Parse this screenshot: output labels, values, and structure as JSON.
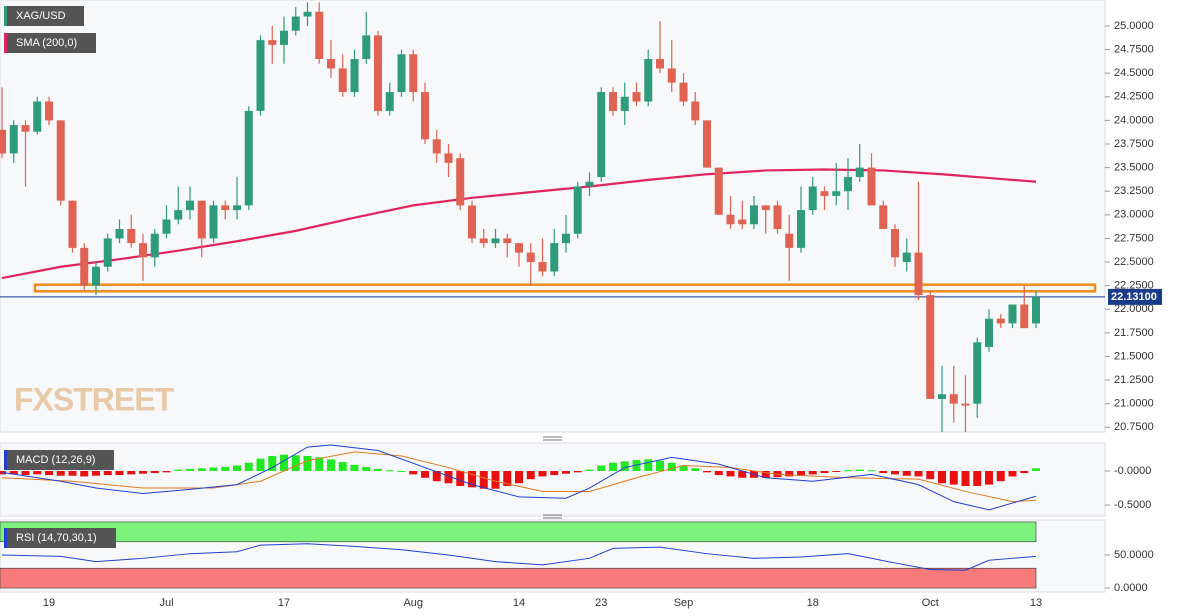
{
  "chart_data": {
    "type": "candlestick",
    "symbol": "XAG/USD",
    "watermark": "FXSTREET",
    "categories": [
      null,
      null,
      null,
      null,
      "19",
      null,
      null,
      null,
      null,
      null,
      null,
      null,
      null,
      null,
      "Jul",
      null,
      null,
      null,
      null,
      null,
      null,
      null,
      null,
      null,
      "17",
      null,
      null,
      null,
      null,
      null,
      null,
      null,
      null,
      null,
      null,
      "Aug",
      null,
      null,
      null,
      null,
      null,
      null,
      null,
      null,
      "14",
      null,
      null,
      null,
      null,
      null,
      null,
      "23",
      null,
      null,
      null,
      null,
      null,
      null,
      "Sep",
      null,
      null,
      null,
      null,
      null,
      null,
      null,
      null,
      null,
      null,
      "18",
      null,
      null,
      null,
      null,
      null,
      null,
      null,
      null,
      null,
      "Oct",
      null,
      null,
      null,
      null,
      null,
      null,
      null,
      null,
      "13"
    ],
    "open": [
      23.9,
      23.65,
      23.95,
      23.88,
      24.2,
      24.0,
      23.15,
      22.65,
      22.25,
      22.45,
      22.75,
      22.85,
      22.7,
      22.55,
      22.8,
      22.95,
      23.05,
      23.15,
      22.75,
      23.1,
      23.05,
      23.1,
      24.1,
      24.85,
      24.8,
      24.95,
      25.1,
      25.15,
      24.65,
      24.55,
      24.3,
      24.65,
      24.9,
      24.1,
      24.3,
      24.7,
      24.3,
      23.8,
      23.65,
      23.6,
      23.1,
      22.75,
      22.7,
      22.75,
      22.7,
      22.6,
      22.5,
      22.4,
      22.7,
      22.8,
      23.3,
      23.4,
      24.3,
      24.1,
      24.3,
      24.2,
      24.65,
      24.55,
      24.4,
      24.2,
      24.0,
      23.5,
      23.0,
      22.95,
      22.9,
      23.1,
      23.1,
      22.8,
      22.65,
      23.05,
      23.25,
      23.2,
      23.25,
      23.4,
      23.5,
      23.1,
      22.85,
      22.5,
      22.6,
      22.15,
      21.05,
      21.1,
      21.0,
      21.0,
      21.6,
      21.9,
      21.85,
      22.05,
      21.85
    ],
    "high": [
      24.35,
      24.0,
      24.0,
      24.25,
      24.25,
      24.0,
      23.15,
      22.7,
      22.5,
      22.8,
      22.95,
      23.0,
      22.8,
      22.85,
      23.1,
      23.3,
      23.3,
      23.15,
      23.15,
      23.15,
      23.4,
      24.15,
      24.9,
      25.0,
      25.1,
      25.2,
      25.25,
      25.25,
      24.85,
      24.7,
      24.75,
      25.15,
      24.95,
      24.4,
      24.75,
      24.75,
      24.4,
      23.9,
      23.75,
      23.65,
      23.15,
      22.85,
      22.85,
      22.8,
      22.7,
      22.7,
      22.75,
      22.85,
      23.0,
      23.35,
      23.45,
      24.35,
      24.35,
      24.4,
      24.4,
      24.75,
      25.05,
      24.85,
      24.5,
      24.3,
      24.0,
      23.5,
      23.2,
      23.15,
      23.2,
      23.1,
      23.15,
      23.0,
      23.3,
      23.4,
      23.3,
      23.55,
      23.6,
      23.75,
      23.65,
      23.15,
      22.9,
      22.75,
      23.35,
      22.2,
      21.4,
      21.4,
      21.3,
      21.7,
      22.0,
      21.95,
      22.05,
      22.25,
      22.2
    ],
    "low": [
      23.6,
      23.55,
      23.3,
      23.85,
      23.95,
      23.1,
      22.6,
      22.2,
      22.15,
      22.4,
      22.7,
      22.65,
      22.3,
      22.45,
      22.75,
      22.9,
      22.95,
      22.55,
      22.7,
      22.95,
      22.95,
      23.05,
      24.05,
      24.6,
      24.6,
      24.9,
      25.0,
      24.6,
      24.45,
      24.25,
      24.25,
      24.6,
      24.05,
      24.05,
      24.25,
      24.2,
      23.75,
      23.55,
      23.4,
      23.05,
      22.7,
      22.65,
      22.65,
      22.55,
      22.45,
      22.25,
      22.35,
      22.35,
      22.6,
      22.75,
      23.2,
      23.35,
      24.05,
      23.95,
      24.15,
      24.15,
      24.5,
      24.3,
      24.15,
      23.95,
      23.5,
      23.0,
      22.85,
      22.85,
      22.85,
      22.8,
      22.8,
      22.3,
      22.6,
      23.0,
      23.05,
      23.1,
      23.05,
      23.35,
      23.1,
      22.85,
      22.45,
      22.4,
      22.1,
      21.05,
      20.7,
      20.8,
      20.7,
      20.85,
      21.55,
      21.8,
      21.8,
      21.8,
      21.8
    ],
    "close": [
      23.65,
      23.95,
      23.88,
      24.2,
      24.0,
      23.15,
      22.65,
      22.25,
      22.45,
      22.75,
      22.85,
      22.7,
      22.55,
      22.8,
      22.95,
      23.05,
      23.15,
      22.75,
      23.1,
      23.05,
      23.1,
      24.1,
      24.85,
      24.8,
      24.95,
      25.1,
      25.15,
      24.65,
      24.55,
      24.3,
      24.65,
      24.9,
      24.1,
      24.3,
      24.7,
      24.3,
      23.8,
      23.65,
      23.55,
      23.1,
      22.75,
      22.7,
      22.75,
      22.7,
      22.6,
      22.5,
      22.4,
      22.7,
      22.8,
      23.3,
      23.35,
      24.3,
      24.1,
      24.25,
      24.2,
      24.65,
      24.55,
      24.4,
      24.2,
      24.0,
      23.5,
      23.0,
      22.9,
      22.9,
      23.1,
      23.05,
      22.85,
      22.65,
      23.05,
      23.3,
      23.2,
      23.25,
      23.4,
      23.5,
      23.1,
      22.85,
      22.55,
      22.6,
      22.15,
      21.05,
      21.1,
      21.0,
      20.98,
      21.65,
      21.9,
      21.85,
      22.05,
      21.8,
      22.131
    ],
    "up_color": "#2e9b7b",
    "down_color": "#df6252",
    "last_label": "22.13100",
    "ylim": [
      20.7,
      25.275
    ],
    "yticks": [
      {
        "value": 25,
        "label": "25.0000"
      },
      {
        "value": 24.75,
        "label": "24.7500"
      },
      {
        "value": 24.5,
        "label": "24.5000"
      },
      {
        "value": 24.25,
        "label": "24.2500"
      },
      {
        "value": 24,
        "label": "24.0000"
      },
      {
        "value": 23.75,
        "label": "23.7500"
      },
      {
        "value": 23.5,
        "label": "23.5000"
      },
      {
        "value": 23.25,
        "label": "23.2500"
      },
      {
        "value": 23,
        "label": "23.0000"
      },
      {
        "value": 22.75,
        "label": "22.7500"
      },
      {
        "value": 22.5,
        "label": "22.5000"
      },
      {
        "value": 22.25,
        "label": "22.2500"
      },
      {
        "value": 22,
        "label": "22.0000"
      },
      {
        "value": 21.75,
        "label": "21.7500"
      },
      {
        "value": 21.5,
        "label": "21.5000"
      },
      {
        "value": 21.25,
        "label": "21.2500"
      },
      {
        "value": 21,
        "label": "21.0000"
      },
      {
        "value": 20.75,
        "label": "20.7500"
      }
    ],
    "zone": [
      22.19,
      22.26
    ],
    "sma": {
      "name": "SMA (200,0)",
      "color": "#e0245e",
      "x": [
        0,
        5,
        10,
        15,
        20,
        25,
        30,
        35,
        40,
        45,
        50,
        55,
        60,
        65,
        70,
        75,
        80,
        85,
        88
      ],
      "values": [
        22.33,
        22.45,
        22.53,
        22.62,
        22.72,
        22.83,
        22.97,
        23.1,
        23.18,
        23.24,
        23.3,
        23.37,
        23.43,
        23.47,
        23.48,
        23.47,
        23.43,
        23.38,
        23.35
      ]
    },
    "macd": {
      "name": "MACD (12,26,9)",
      "ylim": [
        -0.66,
        0.41
      ],
      "yticks": [
        {
          "value": 0,
          "label": "-0.0000"
        },
        {
          "value": -0.5,
          "label": "-0.5000"
        }
      ],
      "histogram": [
        -0.05,
        -0.05,
        -0.06,
        -0.05,
        -0.06,
        -0.07,
        -0.07,
        -0.08,
        -0.07,
        -0.06,
        -0.06,
        -0.05,
        -0.04,
        -0.03,
        -0.02,
        0.02,
        0.03,
        0.04,
        0.05,
        0.06,
        0.08,
        0.12,
        0.18,
        0.22,
        0.24,
        0.23,
        0.22,
        0.2,
        0.17,
        0.13,
        0.09,
        0.06,
        0.03,
        0.01,
        0,
        -0.05,
        -0.1,
        -0.15,
        -0.18,
        -0.22,
        -0.24,
        -0.26,
        -0.26,
        -0.22,
        -0.18,
        -0.12,
        -0.08,
        -0.06,
        -0.04,
        -0.02,
        0.02,
        0.08,
        0.12,
        0.14,
        0.16,
        0.17,
        0.15,
        0.12,
        0.08,
        0.04,
        -0.02,
        -0.06,
        -0.08,
        -0.1,
        -0.1,
        -0.1,
        -0.09,
        -0.08,
        -0.07,
        -0.05,
        -0.03,
        -0.01,
        0.01,
        0.02,
        0.01,
        -0.03,
        -0.05,
        -0.07,
        -0.08,
        -0.12,
        -0.18,
        -0.2,
        -0.22,
        -0.22,
        -0.2,
        -0.15,
        -0.08,
        -0.03,
        0.04
      ],
      "up_color": "#22e822",
      "down_color": "#e81010",
      "line": {
        "color": "#2040d0",
        "x": [
          0,
          5,
          8,
          12,
          16,
          20,
          23,
          26,
          28,
          32,
          36,
          40,
          44,
          48,
          50,
          53,
          57,
          61,
          65,
          69,
          74,
          78,
          81,
          84,
          88
        ],
        "values": [
          -0.02,
          -0.15,
          -0.25,
          -0.33,
          -0.27,
          -0.2,
          0.05,
          0.35,
          0.38,
          0.3,
          0.05,
          -0.2,
          -0.38,
          -0.4,
          -0.25,
          0.05,
          0.2,
          0.1,
          -0.1,
          -0.15,
          -0.05,
          -0.2,
          -0.45,
          -0.57,
          -0.37
        ]
      },
      "signal": {
        "color": "#e07a20",
        "x": [
          0,
          6,
          12,
          18,
          22,
          26,
          30,
          34,
          38,
          42,
          46,
          50,
          54,
          58,
          62,
          66,
          72,
          78,
          82,
          86,
          88
        ],
        "values": [
          -0.1,
          -0.15,
          -0.25,
          -0.25,
          -0.15,
          0.15,
          0.28,
          0.22,
          0.05,
          -0.15,
          -0.3,
          -0.3,
          -0.1,
          0.08,
          0.05,
          -0.05,
          -0.1,
          -0.12,
          -0.3,
          -0.45,
          -0.43
        ]
      }
    },
    "rsi": {
      "name": "RSI (14,70,30,1)",
      "ylim": [
        -6,
        103
      ],
      "yticks": [
        {
          "value": 50,
          "label": "50.0000"
        },
        {
          "value": 0,
          "label": "0.0000"
        }
      ],
      "overbought": [
        70,
        100
      ],
      "oversold": [
        0,
        30
      ],
      "color": "#2040d0",
      "x": [
        0,
        5,
        8,
        12,
        16,
        20,
        22,
        26,
        30,
        34,
        38,
        42,
        46,
        50,
        52,
        56,
        60,
        64,
        68,
        72,
        76,
        79,
        82,
        84,
        86,
        88
      ],
      "values": [
        50,
        48,
        40,
        45,
        52,
        55,
        65,
        67,
        63,
        58,
        50,
        40,
        35,
        45,
        60,
        62,
        52,
        45,
        47,
        52,
        38,
        28,
        27,
        42,
        45,
        48
      ]
    }
  }
}
